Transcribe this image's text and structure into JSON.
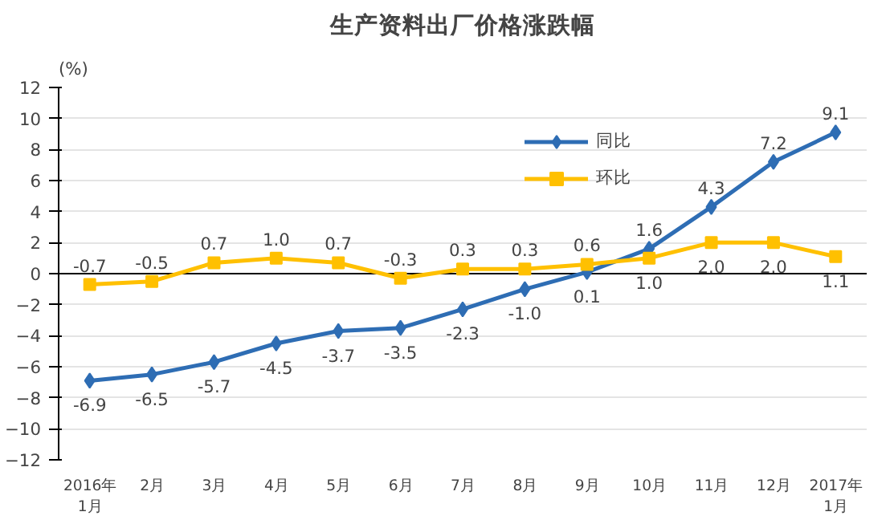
{
  "chart_data": {
    "type": "line",
    "title": "生产资料出厂价格涨跌幅",
    "ylabel": "(%)",
    "categories": [
      "2016年\n1月",
      "2月",
      "3月",
      "4月",
      "5月",
      "6月",
      "7月",
      "8月",
      "9月",
      "10月",
      "11月",
      "12月",
      "2017年\n1月"
    ],
    "series": [
      {
        "name": "同比",
        "color": "#2e6db4",
        "marker": "diamond",
        "values": [
          -6.9,
          -6.5,
          -5.7,
          -4.5,
          -3.7,
          -3.5,
          -2.3,
          -1.0,
          0.1,
          1.6,
          4.3,
          7.2,
          9.1
        ],
        "value_labels": [
          "-6.9",
          "-6.5",
          "-5.7",
          "-4.5",
          "-3.7",
          "-3.5",
          "-2.3",
          "-1.0",
          "0.1",
          "1.6",
          "4.3",
          "7.2",
          "9.1"
        ]
      },
      {
        "name": "环比",
        "color": "#ffc000",
        "marker": "square",
        "values": [
          -0.7,
          -0.5,
          0.7,
          1.0,
          0.7,
          -0.3,
          0.3,
          0.3,
          0.6,
          1.0,
          2.0,
          2.0,
          1.1
        ],
        "value_labels": [
          "-0.7",
          "-0.5",
          "0.7",
          "1.0",
          "0.7",
          "-0.3",
          "0.3",
          "0.3",
          "0.6",
          "1.0",
          "2.0",
          "2.0",
          "1.1"
        ]
      }
    ],
    "ylim": [
      -12,
      12
    ],
    "yticks": [
      -12,
      -10,
      -8,
      -6,
      -4,
      -2,
      0,
      2,
      4,
      6,
      8,
      10,
      12
    ],
    "legend": "top right",
    "grid": "y",
    "line_style": "solid"
  }
}
